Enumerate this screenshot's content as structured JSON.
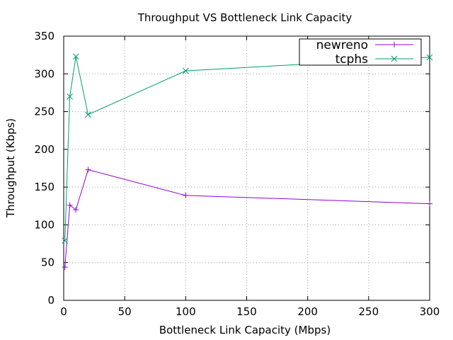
{
  "chart_data": {
    "type": "line",
    "title": "Throughput VS Bottleneck Link Capacity",
    "xlabel": "Bottleneck Link Capacity (Mbps)",
    "ylabel": "Throughput (Kbps)",
    "xlim": [
      0,
      300
    ],
    "ylim": [
      0,
      350
    ],
    "xticks": [
      0,
      50,
      100,
      150,
      200,
      250,
      300
    ],
    "yticks": [
      0,
      50,
      100,
      150,
      200,
      250,
      300,
      350
    ],
    "grid": true,
    "legend_position": "top-right",
    "series": [
      {
        "name": "newreno",
        "color": "#9400d3",
        "marker": "plus",
        "x": [
          1,
          5,
          10,
          20,
          100,
          300
        ],
        "y": [
          44,
          126,
          120,
          173,
          139,
          128
        ]
      },
      {
        "name": "tcphs",
        "color": "#009e73",
        "marker": "cross",
        "x": [
          1,
          5,
          10,
          20,
          100,
          300
        ],
        "y": [
          79,
          270,
          323,
          246,
          304,
          322
        ]
      }
    ]
  }
}
